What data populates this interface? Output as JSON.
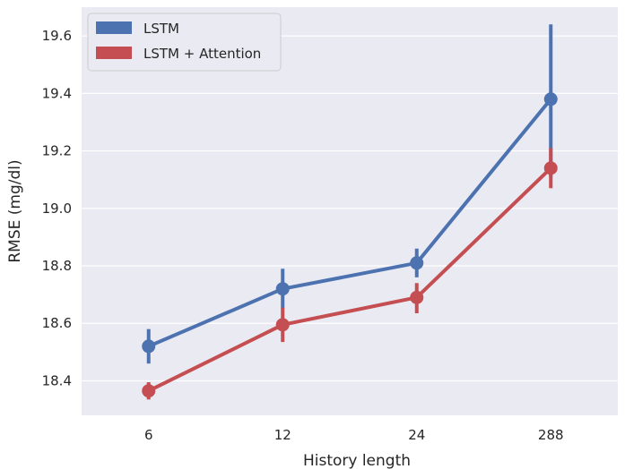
{
  "chart_data": {
    "type": "line",
    "title": "",
    "xlabel": "History length",
    "ylabel": "RMSE (mg/dl)",
    "categories": [
      "6",
      "12",
      "24",
      "288"
    ],
    "yticks": [
      "18.4",
      "18.6",
      "18.8",
      "19.0",
      "19.2",
      "19.4",
      "19.6"
    ],
    "ylim": [
      18.28,
      19.7
    ],
    "grid": true,
    "legend_position": "top-left",
    "series": [
      {
        "name": "LSTM",
        "color": "#4c72b0",
        "values": [
          18.52,
          18.72,
          18.81,
          19.38
        ],
        "ci_low": [
          18.46,
          18.65,
          18.76,
          19.11
        ],
        "ci_high": [
          18.58,
          18.79,
          18.86,
          19.64
        ]
      },
      {
        "name": "LSTM + Attention",
        "color": "#c44e52",
        "values": [
          18.365,
          18.595,
          18.69,
          19.14
        ],
        "ci_low": [
          18.335,
          18.535,
          18.635,
          19.07
        ],
        "ci_high": [
          18.395,
          18.655,
          18.74,
          19.21
        ]
      }
    ]
  }
}
